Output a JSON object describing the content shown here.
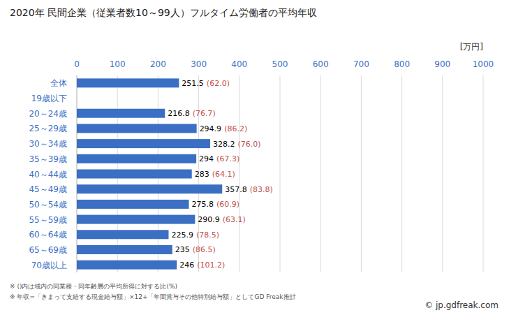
{
  "chart_data": {
    "type": "bar",
    "orientation": "horizontal",
    "title": "2020年 民間企業（従業者数10～99人）フルタイム労働者の平均年収",
    "x_label": "[万円]",
    "categories": [
      "全体",
      "19歳以下",
      "20～24歳",
      "25～29歳",
      "30～34歳",
      "35～39歳",
      "40～44歳",
      "45～49歳",
      "50～54歳",
      "55～59歳",
      "60～64歳",
      "65～69歳",
      "70歳以上"
    ],
    "values": [
      251.5,
      null,
      216.8,
      294.9,
      328.2,
      294.0,
      283.0,
      357.8,
      275.8,
      290.9,
      225.9,
      235.0,
      246.0
    ],
    "ratio_labels": [
      "(62.0)",
      null,
      "(76.7)",
      "(86.2)",
      "(76.0)",
      "(67.3)",
      "(64.1)",
      "(83.8)",
      "(60.9)",
      "(63.1)",
      "(78.5)",
      "(86.5)",
      "(101.2)"
    ],
    "color": "#3a6fc4",
    "xlim": [
      0,
      1000
    ],
    "xticks": [
      0,
      100,
      200,
      300,
      400,
      500,
      600,
      700,
      800,
      900,
      1000
    ],
    "grid": true,
    "data_labels": true,
    "notes": [
      "※ ()内は域内の同業種・同年齢層の平均所得に対する比(%)",
      "※ 年収=「きまって支給する現金給与額」×12+「年間賞与その他特別給与額」としてGD Freak推計"
    ],
    "source": "© jp.gdfreak.com"
  }
}
